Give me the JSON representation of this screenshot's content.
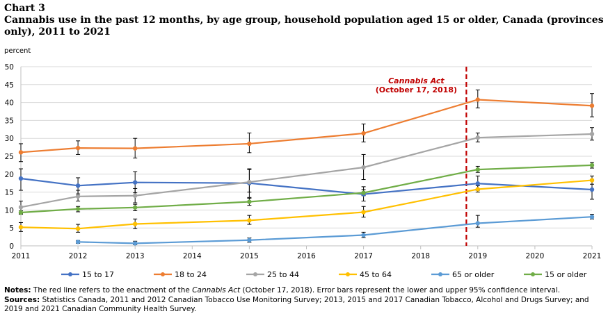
{
  "header": {
    "chart_number": "Chart 3",
    "title": "Cannabis use in the past 12 months, by age group, household population aged 15 or older, Canada (provinces only), 2011 to 2021"
  },
  "notes": {
    "notes_label": "Notes:",
    "notes_text_1": " The red line refers to the enactment of the ",
    "notes_italic": "Cannabis Act",
    "notes_text_2": " (October 17, 2018). Error bars represent the lower and upper 95% confidence interval.",
    "sources_label": "Sources:",
    "sources_text": " Statistics Canada, 2011 and 2012 Canadian Tobacco Use Monitoring Survey; 2013, 2015 and 2017 Canadian Tobacco, Alcohol and Drugs Survey; and 2019 and 2021 Canadian Community Health Survey."
  },
  "chart_data": {
    "type": "line",
    "ylabel": "percent",
    "ylim": [
      0,
      50
    ],
    "yticks": [
      0,
      5,
      10,
      15,
      20,
      25,
      30,
      35,
      40,
      45,
      50
    ],
    "xlim": [
      2011,
      2021
    ],
    "xticks": [
      2011,
      2012,
      2013,
      2014,
      2015,
      2016,
      2017,
      2018,
      2019,
      2020,
      2021
    ],
    "grid": true,
    "legend": "bottom",
    "annotation": {
      "label": "Cannabis Act",
      "sublabel": "(October 17, 2018)",
      "x": 2018.8,
      "color": "#c00000"
    },
    "series": [
      {
        "name": "15 to 17",
        "color": "#4472c4",
        "points": [
          {
            "x": 2011,
            "y": 18.8,
            "lo": 15.5,
            "hi": 21.5
          },
          {
            "x": 2012,
            "y": 16.8,
            "lo": 14.5,
            "hi": 19.0
          },
          {
            "x": 2013,
            "y": 17.7,
            "lo": 14.8,
            "hi": 20.7
          },
          {
            "x": 2015,
            "y": 17.5,
            "lo": 13.5,
            "hi": 21.3
          },
          {
            "x": 2017,
            "y": 14.4,
            "lo": 12.5,
            "hi": 16.5
          },
          {
            "x": 2019,
            "y": 17.4,
            "lo": 15.5,
            "hi": 19.5
          },
          {
            "x": 2021,
            "y": 15.7,
            "lo": 13.0,
            "hi": 18.5
          }
        ]
      },
      {
        "name": "18 to 24",
        "color": "#ed7d31",
        "points": [
          {
            "x": 2011,
            "y": 26.1,
            "lo": 23.5,
            "hi": 28.5
          },
          {
            "x": 2012,
            "y": 27.3,
            "lo": 25.5,
            "hi": 29.3
          },
          {
            "x": 2013,
            "y": 27.2,
            "lo": 24.5,
            "hi": 30.0
          },
          {
            "x": 2015,
            "y": 28.5,
            "lo": 26.0,
            "hi": 31.5
          },
          {
            "x": 2017,
            "y": 31.4,
            "lo": 29.0,
            "hi": 34.0
          },
          {
            "x": 2019,
            "y": 40.8,
            "lo": 38.5,
            "hi": 43.5
          },
          {
            "x": 2021,
            "y": 39.1,
            "lo": 36.0,
            "hi": 42.5
          }
        ]
      },
      {
        "name": "25 to 44",
        "color": "#a5a5a5",
        "points": [
          {
            "x": 2011,
            "y": 10.8,
            "lo": 9.0,
            "hi": 12.5
          },
          {
            "x": 2012,
            "y": 13.8,
            "lo": 12.5,
            "hi": 15.5
          },
          {
            "x": 2013,
            "y": 14.0,
            "lo": 12.0,
            "hi": 16.0
          },
          {
            "x": 2015,
            "y": 17.8,
            "lo": 15.0,
            "hi": 21.5
          },
          {
            "x": 2017,
            "y": 21.9,
            "lo": 18.5,
            "hi": 25.5
          },
          {
            "x": 2019,
            "y": 30.2,
            "lo": 29.0,
            "hi": 31.5
          },
          {
            "x": 2021,
            "y": 31.2,
            "lo": 29.5,
            "hi": 33.0
          }
        ]
      },
      {
        "name": "45 to 64",
        "color": "#ffc000",
        "points": [
          {
            "x": 2011,
            "y": 5.2,
            "lo": 4.0,
            "hi": 6.5
          },
          {
            "x": 2012,
            "y": 4.8,
            "lo": 3.8,
            "hi": 6.0
          },
          {
            "x": 2013,
            "y": 6.1,
            "lo": 4.8,
            "hi": 7.5
          },
          {
            "x": 2015,
            "y": 7.1,
            "lo": 6.0,
            "hi": 8.5
          },
          {
            "x": 2017,
            "y": 9.4,
            "lo": 8.0,
            "hi": 11.0
          },
          {
            "x": 2019,
            "y": 15.8,
            "lo": 15.0,
            "hi": 16.8
          },
          {
            "x": 2021,
            "y": 18.3,
            "lo": 17.2,
            "hi": 19.5
          }
        ]
      },
      {
        "name": "65 or older",
        "color": "#5b9bd5",
        "points": [
          {
            "x": 2012,
            "y": 1.1,
            "lo": 0.7,
            "hi": 1.5
          },
          {
            "x": 2013,
            "y": 0.7,
            "lo": 0.3,
            "hi": 1.3
          },
          {
            "x": 2015,
            "y": 1.6,
            "lo": 1.0,
            "hi": 2.2
          },
          {
            "x": 2017,
            "y": 3.0,
            "lo": 2.3,
            "hi": 3.8
          },
          {
            "x": 2019,
            "y": 6.3,
            "lo": 5.2,
            "hi": 8.5
          },
          {
            "x": 2021,
            "y": 8.1,
            "lo": 7.5,
            "hi": 8.8
          }
        ]
      },
      {
        "name": "15 or older",
        "color": "#70ad47",
        "points": [
          {
            "x": 2011,
            "y": 9.3,
            "lo": 8.8,
            "hi": 9.8
          },
          {
            "x": 2012,
            "y": 10.3,
            "lo": 9.5,
            "hi": 11.0
          },
          {
            "x": 2013,
            "y": 10.7,
            "lo": 9.8,
            "hi": 11.6
          },
          {
            "x": 2015,
            "y": 12.3,
            "lo": 11.3,
            "hi": 13.3
          },
          {
            "x": 2017,
            "y": 14.8,
            "lo": 14.0,
            "hi": 15.7
          },
          {
            "x": 2019,
            "y": 21.3,
            "lo": 20.5,
            "hi": 22.2
          },
          {
            "x": 2021,
            "y": 22.5,
            "lo": 21.7,
            "hi": 23.3
          }
        ]
      }
    ]
  }
}
